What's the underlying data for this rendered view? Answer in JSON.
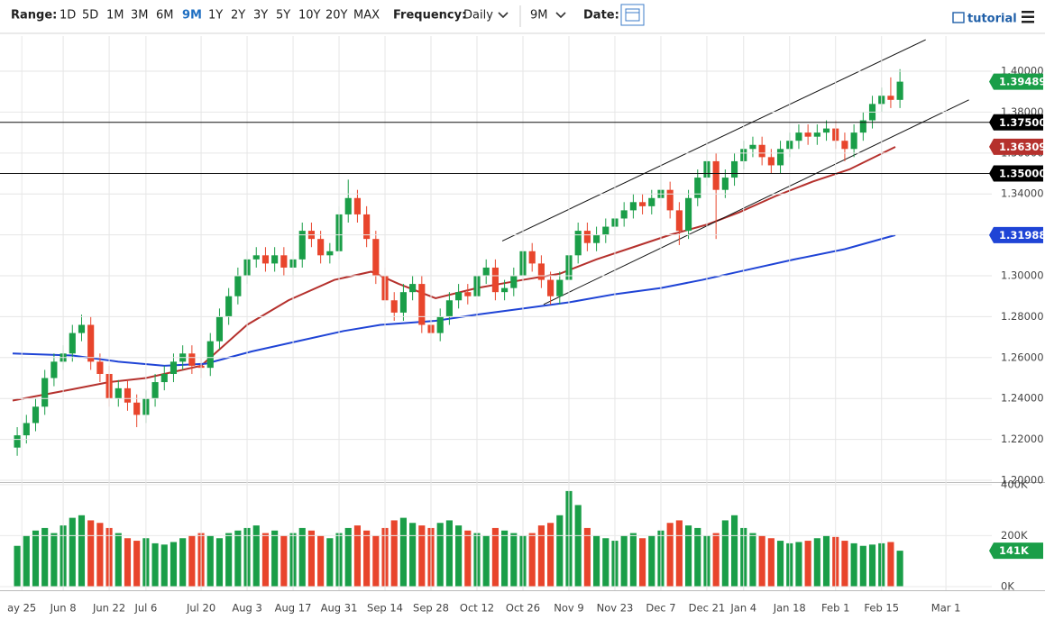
{
  "toolbar": {
    "range_label": "Range:",
    "ranges": [
      "1D",
      "5D",
      "1M",
      "3M",
      "6M",
      "9M",
      "1Y",
      "2Y",
      "3Y",
      "5Y",
      "10Y",
      "20Y",
      "MAX"
    ],
    "active_range": "9M",
    "frequency_label": "Frequency:",
    "frequency": "Daily",
    "interval": "9M",
    "date_label": "Date:",
    "tutorial": "tutorial"
  },
  "chart_data": {
    "type": "candlestick",
    "xlim": [
      0,
      212
    ],
    "xticks": [
      {
        "value": 2,
        "label": "ay 25"
      },
      {
        "value": 11,
        "label": "Jun 8"
      },
      {
        "value": 21,
        "label": "Jun 22"
      },
      {
        "value": 29,
        "label": "Jul 6"
      },
      {
        "value": 41,
        "label": "Jul 20"
      },
      {
        "value": 51,
        "label": "Aug 3"
      },
      {
        "value": 61,
        "label": "Aug 17"
      },
      {
        "value": 71,
        "label": "Aug 31"
      },
      {
        "value": 81,
        "label": "Sep 14"
      },
      {
        "value": 91,
        "label": "Sep 28"
      },
      {
        "value": 101,
        "label": "Oct 12"
      },
      {
        "value": 111,
        "label": "Oct 26"
      },
      {
        "value": 121,
        "label": "Nov 9"
      },
      {
        "value": 131,
        "label": "Nov 23"
      },
      {
        "value": 141,
        "label": "Dec 7"
      },
      {
        "value": 151,
        "label": "Dec 21"
      },
      {
        "value": 159,
        "label": "Jan 4"
      },
      {
        "value": 169,
        "label": "Jan 18"
      },
      {
        "value": 179,
        "label": "Feb 1"
      },
      {
        "value": 189,
        "label": "Feb 15"
      },
      {
        "value": 203,
        "label": "Mar 1"
      }
    ],
    "ylim": [
      1.2,
      1.4172
    ],
    "yticks": [
      {
        "value": 1.2,
        "label": "1.20000"
      },
      {
        "value": 1.22,
        "label": "1.22000"
      },
      {
        "value": 1.24,
        "label": "1.24000"
      },
      {
        "value": 1.26,
        "label": "1.26000"
      },
      {
        "value": 1.28,
        "label": "1.28000"
      },
      {
        "value": 1.3,
        "label": "1.30000"
      },
      {
        "value": 1.32,
        "label": "1.32000"
      },
      {
        "value": 1.34,
        "label": "1.34000"
      },
      {
        "value": 1.36,
        "label": "1.36000"
      },
      {
        "value": 1.38,
        "label": "1.38000"
      },
      {
        "value": 1.4,
        "label": "1.40000"
      }
    ],
    "grid": true,
    "up_color": "#1a9e48",
    "down_color": "#e8452c",
    "candles": {
      "x": [
        0,
        2,
        4,
        6,
        8,
        10,
        12,
        14,
        16,
        18,
        20,
        22,
        24,
        26,
        28,
        30,
        32,
        34,
        36,
        38,
        40,
        42,
        44,
        46,
        48,
        50,
        52,
        54,
        56,
        58,
        60,
        62,
        64,
        66,
        68,
        70,
        72,
        74,
        76,
        78,
        80,
        82,
        84,
        86,
        88,
        90,
        92,
        94,
        96,
        98,
        100,
        102,
        104,
        106,
        108,
        110,
        112,
        114,
        116,
        118,
        120,
        122,
        124,
        126,
        128,
        130,
        132,
        134,
        136,
        138,
        140,
        142,
        144,
        146,
        148,
        150,
        152,
        154,
        156,
        158,
        160,
        162,
        164,
        166,
        168,
        170,
        172,
        174,
        176,
        178,
        180,
        182,
        184,
        186,
        188,
        190,
        192
      ],
      "open": [
        1.216,
        1.222,
        1.228,
        1.236,
        1.25,
        1.258,
        1.262,
        1.272,
        1.276,
        1.258,
        1.252,
        1.24,
        1.245,
        1.238,
        1.232,
        1.24,
        1.248,
        1.252,
        1.258,
        1.262,
        1.256,
        1.255,
        1.268,
        1.28,
        1.29,
        1.3,
        1.308,
        1.31,
        1.306,
        1.31,
        1.304,
        1.308,
        1.322,
        1.318,
        1.31,
        1.312,
        1.33,
        1.338,
        1.33,
        1.318,
        1.3,
        1.288,
        1.282,
        1.292,
        1.296,
        1.276,
        1.272,
        1.28,
        1.288,
        1.292,
        1.29,
        1.3,
        1.304,
        1.292,
        1.294,
        1.3,
        1.312,
        1.306,
        1.298,
        1.29,
        1.298,
        1.31,
        1.322,
        1.316,
        1.32,
        1.324,
        1.328,
        1.332,
        1.336,
        1.334,
        1.338,
        1.342,
        1.332,
        1.322,
        1.338,
        1.348,
        1.356,
        1.342,
        1.348,
        1.356,
        1.362,
        1.364,
        1.358,
        1.354,
        1.362,
        1.366,
        1.37,
        1.368,
        1.37,
        1.372,
        1.366,
        1.362,
        1.37,
        1.376,
        1.384,
        1.388,
        1.386
      ],
      "high": [
        1.226,
        1.232,
        1.24,
        1.254,
        1.262,
        1.266,
        1.276,
        1.281,
        1.28,
        1.262,
        1.256,
        1.249,
        1.249,
        1.242,
        1.244,
        1.252,
        1.256,
        1.262,
        1.266,
        1.266,
        1.26,
        1.272,
        1.284,
        1.294,
        1.304,
        1.312,
        1.314,
        1.314,
        1.314,
        1.314,
        1.312,
        1.326,
        1.326,
        1.322,
        1.316,
        1.334,
        1.347,
        1.342,
        1.334,
        1.322,
        1.304,
        1.292,
        1.296,
        1.3,
        1.3,
        1.28,
        1.284,
        1.292,
        1.296,
        1.296,
        1.304,
        1.308,
        1.308,
        1.298,
        1.304,
        1.316,
        1.316,
        1.31,
        1.302,
        1.302,
        1.314,
        1.326,
        1.326,
        1.324,
        1.328,
        1.332,
        1.336,
        1.34,
        1.34,
        1.342,
        1.35,
        1.346,
        1.336,
        1.342,
        1.352,
        1.362,
        1.36,
        1.352,
        1.36,
        1.366,
        1.368,
        1.368,
        1.362,
        1.366,
        1.37,
        1.374,
        1.374,
        1.374,
        1.376,
        1.376,
        1.37,
        1.374,
        1.38,
        1.388,
        1.392,
        1.397,
        1.401
      ],
      "low": [
        1.212,
        1.218,
        1.224,
        1.232,
        1.246,
        1.254,
        1.258,
        1.268,
        1.254,
        1.248,
        1.236,
        1.236,
        1.234,
        1.226,
        1.228,
        1.236,
        1.244,
        1.248,
        1.254,
        1.252,
        1.25,
        1.251,
        1.264,
        1.276,
        1.286,
        1.296,
        1.304,
        1.302,
        1.302,
        1.3,
        1.3,
        1.304,
        1.314,
        1.306,
        1.306,
        1.308,
        1.326,
        1.326,
        1.314,
        1.296,
        1.284,
        1.278,
        1.278,
        1.288,
        1.272,
        1.268,
        1.268,
        1.276,
        1.284,
        1.286,
        1.286,
        1.296,
        1.288,
        1.288,
        1.29,
        1.296,
        1.302,
        1.294,
        1.286,
        1.286,
        1.294,
        1.306,
        1.312,
        1.312,
        1.316,
        1.32,
        1.324,
        1.328,
        1.33,
        1.33,
        1.334,
        1.328,
        1.315,
        1.318,
        1.334,
        1.344,
        1.318,
        1.338,
        1.344,
        1.352,
        1.358,
        1.354,
        1.35,
        1.35,
        1.358,
        1.362,
        1.364,
        1.364,
        1.366,
        1.362,
        1.356,
        1.358,
        1.366,
        1.372,
        1.38,
        1.382,
        1.382
      ],
      "close": [
        1.222,
        1.228,
        1.236,
        1.25,
        1.258,
        1.262,
        1.272,
        1.276,
        1.258,
        1.252,
        1.24,
        1.245,
        1.238,
        1.232,
        1.24,
        1.248,
        1.252,
        1.258,
        1.262,
        1.256,
        1.255,
        1.268,
        1.28,
        1.29,
        1.3,
        1.308,
        1.31,
        1.306,
        1.31,
        1.304,
        1.308,
        1.322,
        1.318,
        1.31,
        1.312,
        1.33,
        1.338,
        1.33,
        1.318,
        1.3,
        1.288,
        1.282,
        1.292,
        1.296,
        1.276,
        1.272,
        1.28,
        1.288,
        1.292,
        1.29,
        1.3,
        1.304,
        1.292,
        1.294,
        1.3,
        1.312,
        1.306,
        1.298,
        1.29,
        1.298,
        1.31,
        1.322,
        1.316,
        1.32,
        1.324,
        1.328,
        1.332,
        1.336,
        1.334,
        1.338,
        1.342,
        1.332,
        1.322,
        1.338,
        1.348,
        1.356,
        1.342,
        1.348,
        1.356,
        1.362,
        1.364,
        1.358,
        1.354,
        1.362,
        1.366,
        1.37,
        1.368,
        1.37,
        1.372,
        1.366,
        1.362,
        1.37,
        1.376,
        1.384,
        1.388,
        1.386,
        1.3949
      ]
    },
    "series": [
      {
        "color": "#b5312d",
        "x": [
          0,
          13,
          21,
          29,
          41,
          51,
          60,
          70,
          78,
          84,
          92,
          101,
          111,
          119,
          127,
          135,
          143,
          151,
          158,
          166,
          174,
          182,
          192
        ],
        "values": [
          1.239,
          1.2445,
          1.248,
          1.25,
          1.256,
          1.276,
          1.288,
          1.298,
          1.302,
          1.296,
          1.289,
          1.294,
          1.298,
          1.301,
          1.308,
          1.314,
          1.32,
          1.325,
          1.331,
          1.339,
          1.346,
          1.352,
          1.363
        ]
      },
      {
        "color": "#1f44d6",
        "x": [
          0,
          13,
          23,
          33,
          42,
          52,
          62,
          72,
          80,
          92,
          101,
          111,
          121,
          131,
          141,
          150,
          160,
          170,
          181,
          192
        ],
        "values": [
          1.262,
          1.261,
          1.258,
          1.256,
          1.257,
          1.263,
          1.268,
          1.273,
          1.276,
          1.278,
          1.281,
          1.284,
          1.287,
          1.291,
          1.294,
          1.298,
          1.303,
          1.308,
          1.313,
          1.3199
        ]
      }
    ],
    "trendlines": [
      {
        "x": [
          106.5,
          198.6
        ],
        "y": [
          1.317,
          1.4154
        ]
      },
      {
        "x": [
          115.5,
          208
        ],
        "y": [
          1.286,
          1.386
        ]
      }
    ],
    "levels": [
      {
        "value": 1.375,
        "label": "1.37500"
      },
      {
        "value": 1.35,
        "label": "1.35000"
      }
    ],
    "price_labels": [
      {
        "value": 1.39489,
        "label": "1.39489",
        "color": "#1a9e48"
      },
      {
        "value": 1.36309,
        "label": "1.36309",
        "color": "#b5312d"
      },
      {
        "value": 1.31988,
        "label": "1.31988",
        "color": "#1f44d6"
      }
    ],
    "volume": {
      "ylim": [
        0,
        410
      ],
      "yticks": [
        {
          "value": 0,
          "label": "0K"
        },
        {
          "value": 200,
          "label": "200K"
        },
        {
          "value": 400,
          "label": "400K"
        }
      ],
      "values": [
        160,
        200,
        220,
        230,
        210,
        240,
        270,
        280,
        260,
        250,
        230,
        210,
        190,
        180,
        190,
        170,
        165,
        175,
        190,
        200,
        210,
        200,
        190,
        210,
        220,
        230,
        240,
        210,
        220,
        200,
        210,
        230,
        220,
        200,
        190,
        210,
        230,
        240,
        220,
        200,
        230,
        260,
        270,
        250,
        240,
        230,
        250,
        260,
        240,
        220,
        210,
        200,
        230,
        220,
        210,
        200,
        210,
        240,
        250,
        280,
        375,
        320,
        230,
        200,
        190,
        180,
        200,
        210,
        190,
        200,
        220,
        250,
        260,
        240,
        230,
        200,
        210,
        260,
        280,
        230,
        210,
        200,
        190,
        180,
        170,
        175,
        180,
        190,
        200,
        195,
        180,
        170,
        160,
        165,
        170,
        175,
        141
      ],
      "last": {
        "value": 141,
        "label": "141K",
        "color": "#1a9e48"
      }
    }
  }
}
